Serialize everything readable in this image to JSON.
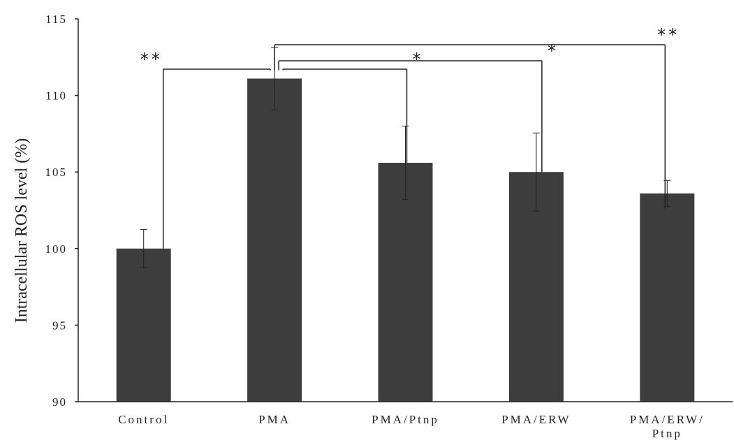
{
  "chart_data": {
    "type": "bar",
    "categories": [
      "Control",
      "PMA",
      "PMA/Ptnp",
      "PMA/ERW",
      "PMA/ERW/Ptnp"
    ],
    "category_labels": [
      [
        "Control"
      ],
      [
        "PMA"
      ],
      [
        "PMA/Ptnp"
      ],
      [
        "PMA/ERW"
      ],
      [
        "PMA/ERW/",
        "Ptnp"
      ]
    ],
    "values": [
      100.0,
      111.1,
      105.6,
      105.0,
      103.6
    ],
    "errors": [
      1.25,
      2.05,
      2.4,
      2.55,
      0.85
    ],
    "title": "",
    "xlabel": "",
    "ylabel": "Intracellular ROS level (%)",
    "ylim": [
      90,
      115
    ],
    "yticks": [
      90,
      95,
      100,
      105,
      110,
      115
    ],
    "grid": false,
    "bar_color": "#3d3d3d",
    "significance": [
      {
        "from": "Control",
        "to": "PMA",
        "label": "**"
      },
      {
        "from": "PMA",
        "to": "PMA/Ptnp",
        "label": "*"
      },
      {
        "from": "PMA",
        "to": "PMA/ERW",
        "label": "*"
      },
      {
        "from": "PMA",
        "to": "PMA/ERW/Ptnp",
        "label": "**"
      }
    ]
  }
}
